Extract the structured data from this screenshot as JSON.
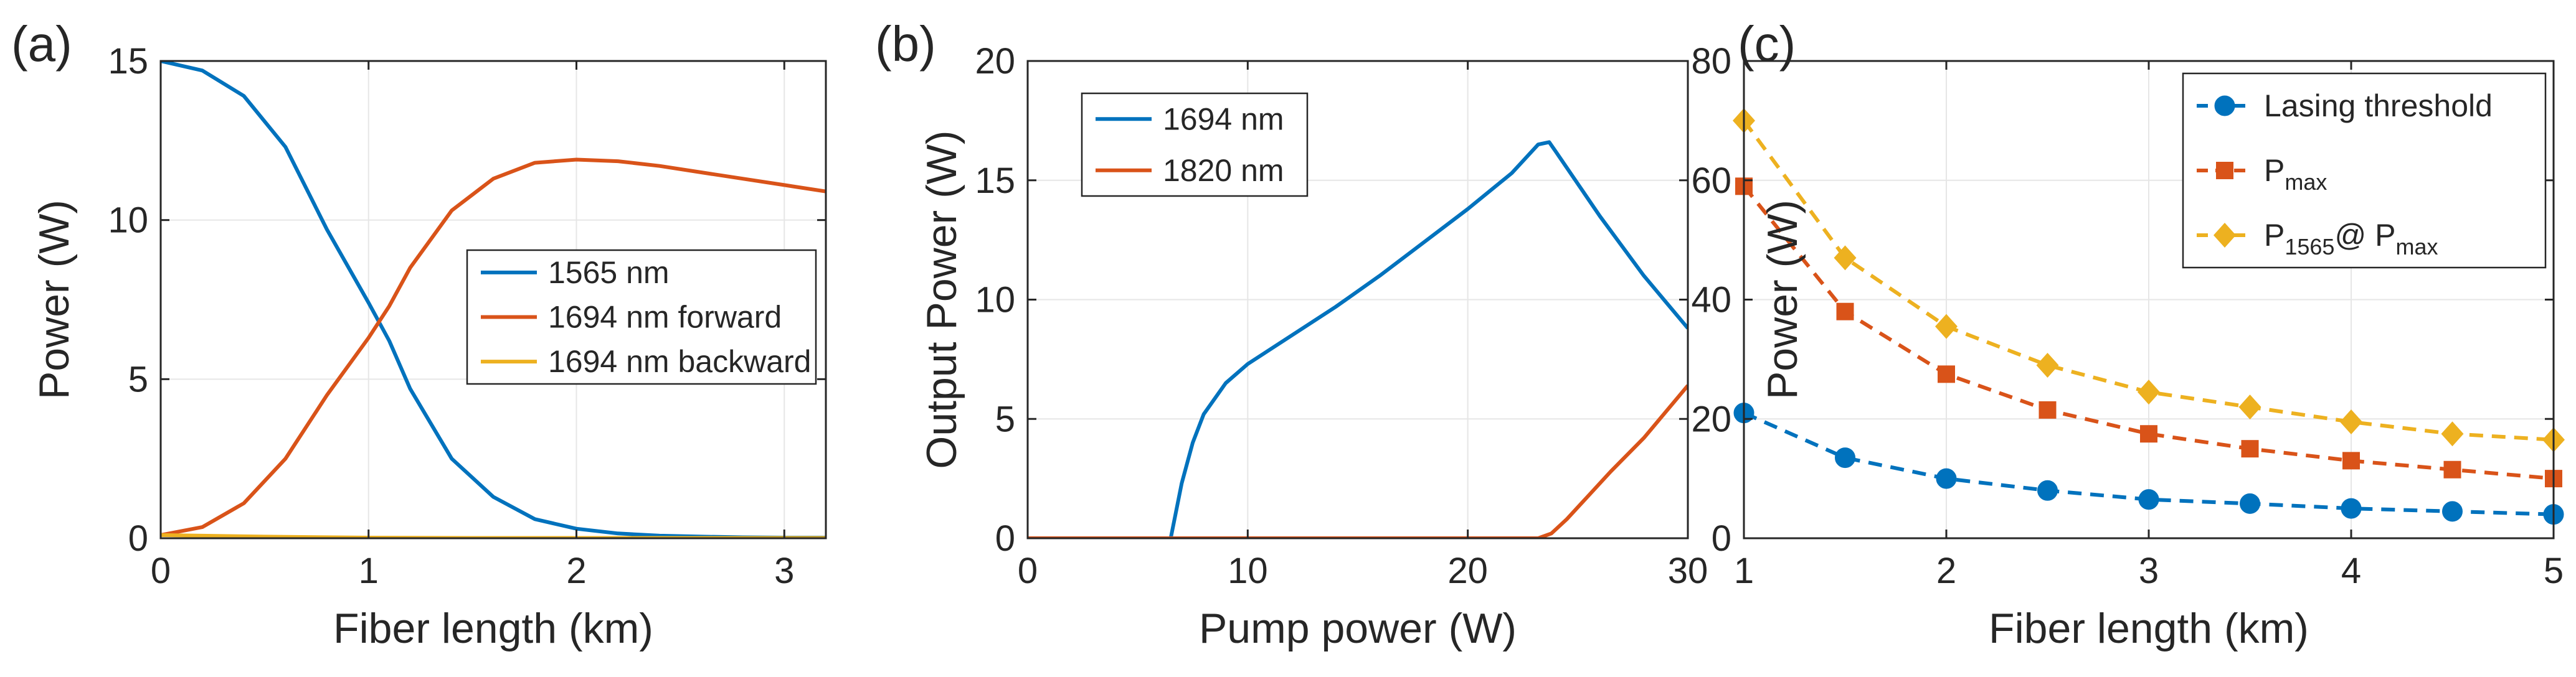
{
  "colors": {
    "blue": "#0072BD",
    "orange": "#D95319",
    "yellow": "#EDB120"
  },
  "chart_data": [
    {
      "type": "line",
      "panel_label": "(a)",
      "xlabel": "Fiber length (km)",
      "ylabel": "Power (W)",
      "xlim": [
        0,
        3.2
      ],
      "ylim": [
        0,
        15
      ],
      "xticks": [
        0,
        1,
        2,
        3
      ],
      "yticks": [
        0,
        5,
        10,
        15
      ],
      "grid": true,
      "legend_position": "center-right",
      "series": [
        {
          "name": "1565 nm",
          "color": "blue",
          "x": [
            0,
            0.2,
            0.4,
            0.6,
            0.8,
            1.0,
            1.1,
            1.2,
            1.4,
            1.6,
            1.8,
            2.0,
            2.2,
            2.4,
            2.6,
            2.8,
            3.0,
            3.2
          ],
          "y": [
            15,
            14.7,
            13.9,
            12.3,
            9.7,
            7.4,
            6.2,
            4.7,
            2.5,
            1.3,
            0.6,
            0.3,
            0.15,
            0.08,
            0.05,
            0.03,
            0.02,
            0.02
          ]
        },
        {
          "name": "1694 nm forward",
          "color": "orange",
          "x": [
            0,
            0.2,
            0.4,
            0.6,
            0.8,
            1.0,
            1.1,
            1.2,
            1.4,
            1.6,
            1.8,
            2.0,
            2.2,
            2.4,
            2.6,
            2.8,
            3.0,
            3.2
          ],
          "y": [
            0.1,
            0.35,
            1.1,
            2.5,
            4.5,
            6.3,
            7.3,
            8.5,
            10.3,
            11.3,
            11.8,
            11.9,
            11.85,
            11.7,
            11.5,
            11.3,
            11.1,
            10.9
          ]
        },
        {
          "name": "1694 nm backward",
          "color": "yellow",
          "x": [
            0,
            0.5,
            1.0,
            1.5,
            2.0,
            2.5,
            3.0,
            3.2
          ],
          "y": [
            0.1,
            0.05,
            0.02,
            0.01,
            0.01,
            0.01,
            0.01,
            0.01
          ]
        }
      ]
    },
    {
      "type": "line",
      "panel_label": "(b)",
      "xlabel": "Pump power (W)",
      "ylabel": "Output Power (W)",
      "xlim": [
        0,
        30
      ],
      "ylim": [
        0,
        20
      ],
      "xticks": [
        0,
        10,
        20,
        30
      ],
      "yticks": [
        0,
        5,
        10,
        15,
        20
      ],
      "grid": true,
      "legend_position": "top-left",
      "series": [
        {
          "name": "1694 nm",
          "color": "blue",
          "x": [
            0,
            6.5,
            7,
            7.5,
            8,
            9,
            10,
            12,
            14,
            16,
            18,
            20,
            22,
            23.2,
            23.7,
            24,
            26,
            28,
            30
          ],
          "y": [
            0,
            0,
            2.3,
            4.0,
            5.2,
            6.5,
            7.3,
            8.5,
            9.7,
            11.0,
            12.4,
            13.8,
            15.3,
            16.5,
            16.6,
            16.2,
            13.5,
            11.0,
            8.8
          ]
        },
        {
          "name": "1820 nm",
          "color": "orange",
          "x": [
            0,
            23.2,
            23.8,
            24.5,
            25.5,
            26.5,
            28,
            29,
            30
          ],
          "y": [
            0,
            0,
            0.2,
            0.8,
            1.8,
            2.8,
            4.2,
            5.3,
            6.4
          ]
        }
      ]
    },
    {
      "type": "line",
      "panel_label": "(c)",
      "xlabel": "Fiber length (km)",
      "ylabel": "Power (W)",
      "xlim": [
        1,
        5
      ],
      "ylim": [
        0,
        80
      ],
      "xticks": [
        1,
        2,
        3,
        4,
        5
      ],
      "yticks": [
        0,
        20,
        40,
        60,
        80
      ],
      "grid": true,
      "legend_position": "top-right",
      "series": [
        {
          "name": "Lasing threshold",
          "color": "blue",
          "marker": "circle",
          "dashed": true,
          "x": [
            1,
            1.5,
            2,
            2.5,
            3,
            3.5,
            4,
            4.5,
            5
          ],
          "y": [
            21,
            13.5,
            10,
            8,
            6.5,
            5.8,
            5,
            4.5,
            4
          ]
        },
        {
          "name": "P",
          "sub": "max",
          "color": "orange",
          "marker": "square",
          "dashed": true,
          "x": [
            1,
            1.5,
            2,
            2.5,
            3,
            3.5,
            4,
            4.5,
            5
          ],
          "y": [
            59,
            38,
            27.5,
            21.5,
            17.5,
            15,
            13,
            11.5,
            10
          ]
        },
        {
          "name": "P",
          "sub": "1565",
          "name2": "@ P",
          "sub2": "max",
          "color": "yellow",
          "marker": "diamond",
          "dashed": true,
          "x": [
            1,
            1.5,
            2,
            2.5,
            3,
            3.5,
            4,
            4.5,
            5
          ],
          "y": [
            70,
            47,
            35.5,
            29,
            24.5,
            22,
            19.5,
            17.5,
            16.5
          ]
        }
      ]
    }
  ]
}
